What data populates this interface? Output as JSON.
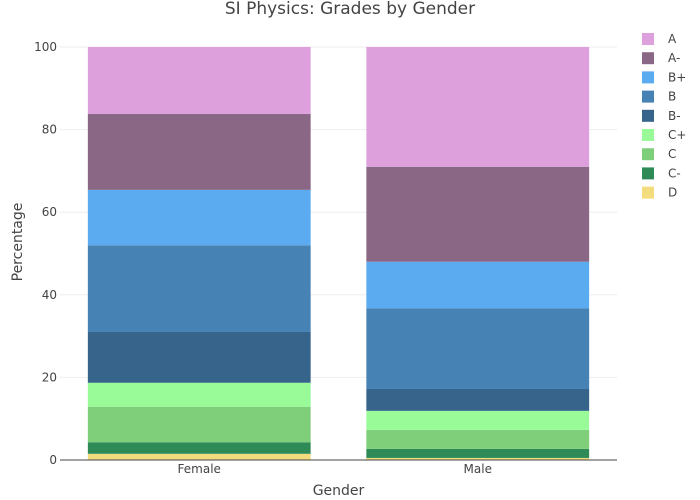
{
  "chart_data": {
    "type": "bar",
    "stacked": true,
    "title": "SI Physics: Grades by Gender",
    "xlabel": "Gender",
    "ylabel": "Percentage",
    "categories": [
      "Female",
      "Male"
    ],
    "ylim": [
      0,
      100
    ],
    "yticks": [
      0,
      20,
      40,
      60,
      80,
      100
    ],
    "grid": true,
    "legend_position": "top-right",
    "series": [
      {
        "name": "D",
        "color": "#f2dc7d",
        "values": [
          1.5,
          0.5
        ]
      },
      {
        "name": "C-",
        "color": "#2e8b57",
        "values": [
          2.8,
          2.2
        ]
      },
      {
        "name": "C",
        "color": "#7fcf7a",
        "values": [
          8.6,
          4.6
        ]
      },
      {
        "name": "C+",
        "color": "#98fb98",
        "values": [
          5.8,
          4.6
        ]
      },
      {
        "name": "B-",
        "color": "#36648b",
        "values": [
          12.3,
          5.3
        ]
      },
      {
        "name": "B",
        "color": "#4682b4",
        "values": [
          21.0,
          19.5
        ]
      },
      {
        "name": "B+",
        "color": "#5aabef",
        "values": [
          13.4,
          11.3
        ]
      },
      {
        "name": "A-",
        "color": "#8b6786",
        "values": [
          18.4,
          23.0
        ]
      },
      {
        "name": "A",
        "color": "#dda0dd",
        "values": [
          16.2,
          29.0
        ]
      }
    ]
  }
}
